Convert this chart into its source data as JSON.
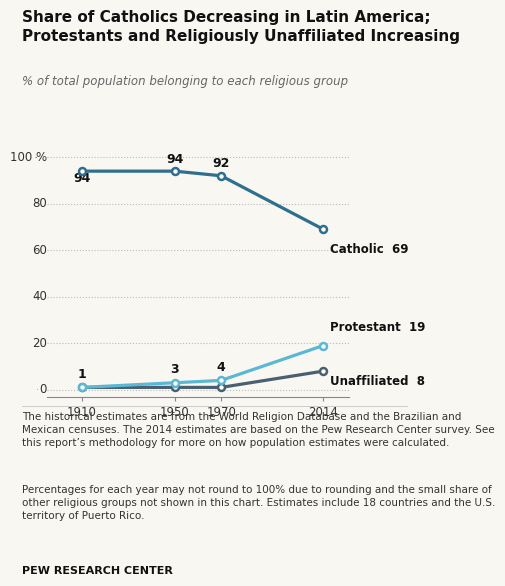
{
  "title": "Share of Catholics Decreasing in Latin America;\nProtestants and Religiously Unaffiliated Increasing",
  "subtitle": "% of total population belonging to each religious group",
  "years": [
    1910,
    1950,
    1970,
    2014
  ],
  "catholic": [
    94,
    94,
    92,
    69
  ],
  "protestant": [
    1,
    3,
    4,
    19
  ],
  "unaffiliated": [
    1,
    1,
    1,
    8
  ],
  "catholic_color": "#2E6E8E",
  "protestant_color": "#5BB8D4",
  "unaffiliated_color": "#4A6070",
  "background_color": "#F9F7F2",
  "ylim": [
    -3,
    107
  ],
  "yticks": [
    0,
    20,
    40,
    60,
    80,
    100
  ],
  "footnote1": "The historical estimates are from the World Religion Database and the Brazilian and\nMexican censuses. The 2014 estimates are based on the Pew Research Center survey. See\nthis report’s methodology for more on how population estimates were calculated.",
  "footnote2": "Percentages for each year may not round to 100% due to rounding and the small share of\nother religious groups not shown in this chart. Estimates include 18 countries and the U.S.\nterritory of Puerto Rico.",
  "source": "PEW RESEARCH CENTER"
}
